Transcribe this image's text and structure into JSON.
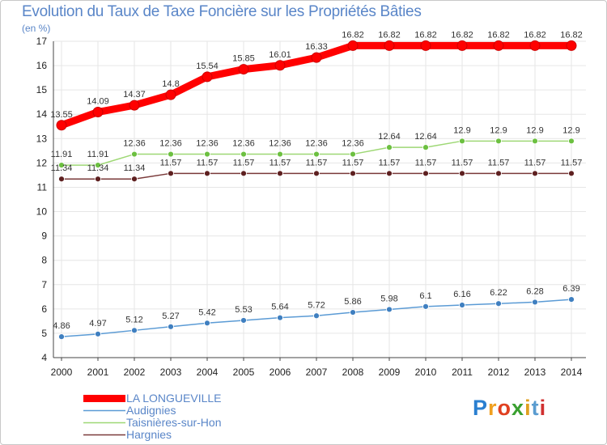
{
  "header": {
    "title": "Evolution du Taux de Taxe Foncière sur les Propriétés Bâties",
    "unit": "(en %)"
  },
  "logo": {
    "letters": [
      "P",
      "r",
      "o",
      "x",
      "i",
      "t",
      "i"
    ],
    "colors": [
      "#2a7fd0",
      "#f0a020",
      "#e04020",
      "#3aa030",
      "#e0a020",
      "#5a9cd0",
      "#d03030"
    ]
  },
  "chart_data": {
    "type": "line",
    "title": "Evolution du Taux de Taxe Foncière sur les Propriétés Bâties",
    "ylabel": "(en %)",
    "xlabel": "",
    "ylim": [
      4,
      17
    ],
    "yticks": [
      4,
      5,
      6,
      7,
      8,
      9,
      10,
      11,
      12,
      13,
      14,
      15,
      16,
      17
    ],
    "x": [
      "2000",
      "2001",
      "2002",
      "2003",
      "2004",
      "2005",
      "2006",
      "2007",
      "2008",
      "2009",
      "2010",
      "2011",
      "2012",
      "2013",
      "2014"
    ],
    "grid": true,
    "legend_position": "bottom-left",
    "series": [
      {
        "name": "LA LONGUEVILLE",
        "color": "#ff0000",
        "point_color": "#ff0000",
        "width": 9,
        "radius": 6,
        "values": [
          13.55,
          14.09,
          14.37,
          14.8,
          15.54,
          15.85,
          16.01,
          16.33,
          16.82,
          16.82,
          16.82,
          16.82,
          16.82,
          16.82,
          16.82
        ],
        "labels": [
          "13.55",
          "14.09",
          "14.37",
          "14.8",
          "15.54",
          "15.85",
          "16.01",
          "16.33",
          "16.82",
          "16.82",
          "16.82",
          "16.82",
          "16.82",
          "16.82",
          "16.82"
        ]
      },
      {
        "name": "Audignies",
        "color": "#5b9bd5",
        "point_color": "#3f7fc0",
        "width": 1.5,
        "radius": 3.5,
        "values": [
          4.86,
          4.97,
          5.12,
          5.27,
          5.42,
          5.53,
          5.64,
          5.72,
          5.86,
          5.98,
          6.1,
          6.16,
          6.22,
          6.28,
          6.39
        ],
        "labels": [
          "4.86",
          "4.97",
          "5.12",
          "5.27",
          "5.42",
          "5.53",
          "5.64",
          "5.72",
          "5.86",
          "5.98",
          "6.1",
          "6.16",
          "6.22",
          "6.28",
          "6.39"
        ]
      },
      {
        "name": "Taisnières-sur-Hon",
        "color": "#9ed875",
        "point_color": "#6cc040",
        "width": 1.5,
        "radius": 3.5,
        "values": [
          11.91,
          11.91,
          12.36,
          12.36,
          12.36,
          12.36,
          12.36,
          12.36,
          12.36,
          12.64,
          12.64,
          12.9,
          12.9,
          12.9,
          12.9
        ],
        "labels": [
          "11.91",
          "11.91",
          "12.36",
          "12.36",
          "12.36",
          "12.36",
          "12.36",
          "12.36",
          "12.36",
          "12.64",
          "12.64",
          "12.9",
          "12.9",
          "12.9",
          "12.9"
        ]
      },
      {
        "name": "Hargnies",
        "color": "#7a3a3a",
        "point_color": "#5e2020",
        "width": 1.5,
        "radius": 3.5,
        "values": [
          11.34,
          11.34,
          11.34,
          11.57,
          11.57,
          11.57,
          11.57,
          11.57,
          11.57,
          11.57,
          11.57,
          11.57,
          11.57,
          11.57,
          11.57
        ],
        "labels": [
          "11.34",
          "11.34",
          "11.34",
          "11.57",
          "11.57",
          "11.57",
          "11.57",
          "11.57",
          "11.57",
          "11.57",
          "11.57",
          "11.57",
          "11.57",
          "11.57",
          "11.57"
        ]
      }
    ]
  }
}
